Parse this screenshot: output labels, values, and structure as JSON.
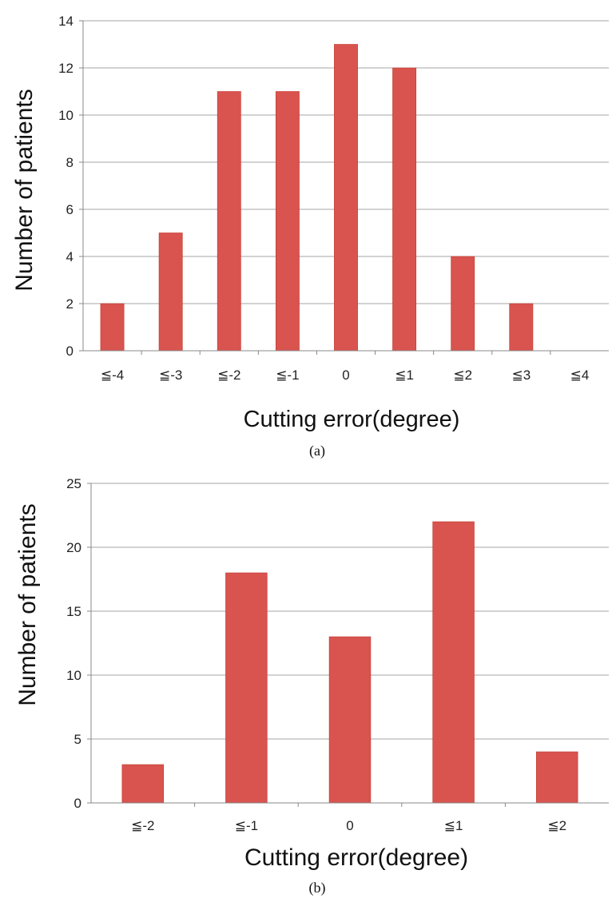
{
  "chart_data": [
    {
      "type": "bar",
      "categories": [
        "≦-4",
        "≦-3",
        "≦-2",
        "≦-1",
        "0",
        "≦1",
        "≦2",
        "≦3",
        "≦4"
      ],
      "values": [
        2,
        5,
        11,
        11,
        13,
        12,
        4,
        2,
        0
      ],
      "xlabel": "Cutting error(degree)",
      "ylabel": "Number of patients",
      "ylim": [
        0,
        14
      ],
      "yticks": [
        0,
        2,
        4,
        6,
        8,
        10,
        12,
        14
      ],
      "caption": "(a)",
      "grid": true,
      "legend": "none",
      "bar_color": "#d9534f"
    },
    {
      "type": "bar",
      "categories": [
        "≦-2",
        "≦-1",
        "0",
        "≦1",
        "≦2"
      ],
      "values": [
        3,
        18,
        13,
        22,
        4
      ],
      "xlabel": "Cutting error(degree)",
      "ylabel": "Number of patients",
      "ylim": [
        0,
        25
      ],
      "yticks": [
        0,
        5,
        10,
        15,
        20,
        25
      ],
      "caption": "(b)",
      "grid": true,
      "legend": "none",
      "bar_color": "#d9534f"
    }
  ]
}
